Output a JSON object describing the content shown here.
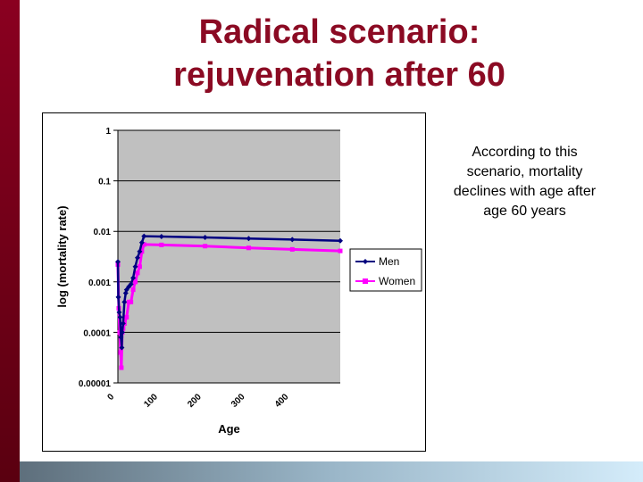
{
  "slide": {
    "title_line1": "Radical scenario:",
    "title_line2": "rejuvenation after 60",
    "note": "According to this scenario, mortality declines with age after age 60 years"
  },
  "chart_data": {
    "type": "line",
    "title": "",
    "xlabel": "Age",
    "ylabel": "log (mortality rate)",
    "yscale": "log",
    "ylim": [
      1e-05,
      1
    ],
    "xlim": [
      0,
      510
    ],
    "yticks": [
      "1",
      "0.1",
      "0.01",
      "0.001",
      "0.0001",
      "0.00001"
    ],
    "ytick_values": [
      1,
      0.1,
      0.01,
      0.001,
      0.0001,
      1e-05
    ],
    "xticks": [
      "0",
      "100",
      "200",
      "300",
      "400"
    ],
    "xtick_values": [
      0,
      100,
      200,
      300,
      400
    ],
    "grid": true,
    "legend_position": "right",
    "series": [
      {
        "name": "Men",
        "color": "#000080",
        "marker": "diamond",
        "x": [
          0,
          1,
          3,
          5,
          7,
          9,
          10,
          12,
          15,
          18,
          20,
          25,
          30,
          35,
          40,
          45,
          50,
          55,
          60,
          100,
          200,
          300,
          400,
          510
        ],
        "y": [
          0.0025,
          0.0005,
          0.00025,
          0.0002,
          8e-05,
          5e-05,
          0.0001,
          0.00015,
          0.0004,
          0.0006,
          0.0007,
          0.0008,
          0.0009,
          0.0012,
          0.002,
          0.003,
          0.004,
          0.006,
          0.008,
          0.0079,
          0.0076,
          0.0072,
          0.0069,
          0.0065
        ]
      },
      {
        "name": "Women",
        "color": "#ff00ff",
        "marker": "square",
        "x": [
          0,
          2,
          4,
          6,
          8,
          10,
          12,
          15,
          20,
          25,
          30,
          35,
          40,
          45,
          50,
          55,
          60,
          100,
          200,
          300,
          400,
          510
        ],
        "y": [
          0.0022,
          0.0003,
          0.0001,
          4e-05,
          2e-05,
          0.0001,
          0.00012,
          0.00015,
          0.0002,
          0.0004,
          0.0004,
          0.0007,
          0.001,
          0.0015,
          0.002,
          0.004,
          0.0055,
          0.0054,
          0.0051,
          0.0047,
          0.0044,
          0.0041
        ]
      }
    ]
  }
}
